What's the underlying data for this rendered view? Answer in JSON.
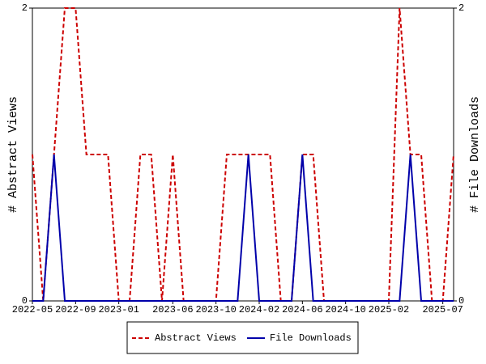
{
  "chart_data": {
    "type": "line",
    "x": [
      "2022-05",
      "2022-06",
      "2022-07",
      "2022-08",
      "2022-09",
      "2022-10",
      "2022-11",
      "2022-12",
      "2023-01",
      "2023-02",
      "2023-03",
      "2023-04",
      "2023-05",
      "2023-06",
      "2023-07",
      "2023-08",
      "2023-09",
      "2023-10",
      "2023-11",
      "2023-12",
      "2024-01",
      "2024-02",
      "2024-03",
      "2024-04",
      "2024-05",
      "2024-06",
      "2024-07",
      "2024-08",
      "2024-09",
      "2024-10",
      "2024-11",
      "2024-12",
      "2025-01",
      "2025-02",
      "2025-03",
      "2025-04",
      "2025-05",
      "2025-06",
      "2025-07",
      "2025-08"
    ],
    "xticks": [
      "2022-05",
      "2022-09",
      "2023-01",
      "2023-06",
      "2023-10",
      "2024-02",
      "2024-06",
      "2024-10",
      "2025-02",
      "2025-07"
    ],
    "ylabel": "# Abstract Views",
    "y2label": "# File Downloads",
    "ylim": [
      0,
      2
    ],
    "yticks": [
      0,
      2
    ],
    "y2lim": [
      0,
      2
    ],
    "y2ticks": [
      0,
      2
    ],
    "series": [
      {
        "name": "Abstract Views",
        "color": "#cc0000",
        "dashed": true,
        "values": [
          1,
          0,
          1,
          2,
          2,
          1,
          1,
          1,
          0,
          0,
          1,
          1,
          0,
          1,
          0,
          0,
          0,
          0,
          1,
          1,
          1,
          1,
          1,
          0,
          0,
          1,
          1,
          0,
          0,
          0,
          0,
          0,
          0,
          0,
          2,
          1,
          1,
          0,
          0,
          1
        ]
      },
      {
        "name": "File Downloads",
        "color": "#0000aa",
        "axis": "y2",
        "values": [
          0,
          0,
          1,
          0,
          0,
          0,
          0,
          0,
          0,
          0,
          0,
          0,
          0,
          0,
          0,
          0,
          0,
          0,
          0,
          0,
          1,
          0,
          0,
          0,
          0,
          1,
          0,
          0,
          0,
          0,
          0,
          0,
          0,
          0,
          0,
          1,
          0,
          0,
          0,
          0
        ]
      }
    ]
  }
}
